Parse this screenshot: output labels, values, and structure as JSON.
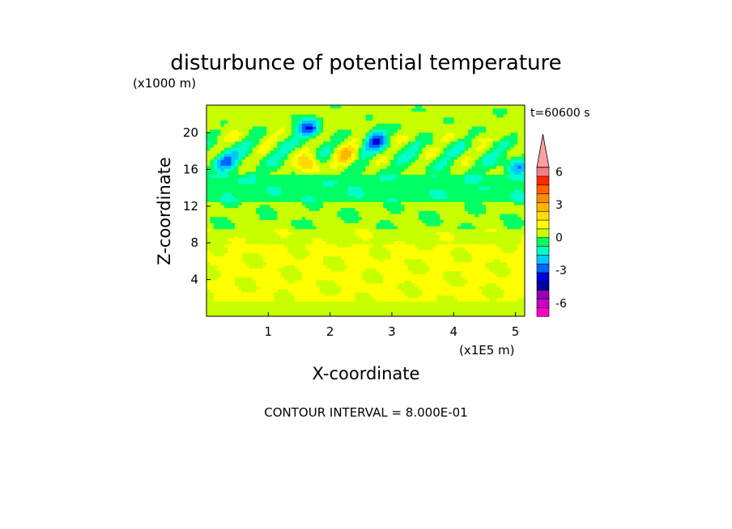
{
  "chart_data": {
    "type": "heatmap",
    "title": "disturbunce of potential temperature",
    "xlabel": "X-coordinate",
    "ylabel": "Z-coordinate",
    "x_unit": "(x1E5 m)",
    "y_unit": "(x1000 m)",
    "time_label": "t=60600 s",
    "contour_interval": "CONTOUR INTERVAL = 8.000E-01",
    "xlim": [
      0,
      5.15
    ],
    "ylim": [
      0,
      23
    ],
    "x_ticks": [
      1,
      2,
      3,
      4,
      5
    ],
    "y_ticks": [
      4,
      8,
      12,
      16,
      20
    ],
    "x_tick_labels": [
      "1",
      "2",
      "3",
      "4",
      "5"
    ],
    "y_tick_labels": [
      "4",
      "8",
      "12",
      "16",
      "20"
    ],
    "colorbar": {
      "levels": [
        -7.2,
        -6.4,
        -5.6,
        -4.8,
        -4.0,
        -3.2,
        -2.4,
        -1.6,
        -0.8,
        0,
        0.8,
        1.6,
        2.4,
        3.2,
        4.0,
        4.8,
        5.6,
        6.4,
        7.2
      ],
      "colors": [
        "#ff00c8",
        "#c800c8",
        "#9600b4",
        "#0000a0",
        "#0000dc",
        "#0064ff",
        "#00c8ff",
        "#00ffc8",
        "#00ff64",
        "#c8ff00",
        "#ffff00",
        "#ffdc00",
        "#ffb400",
        "#ff8c00",
        "#ff6400",
        "#ff2800",
        "#f08080",
        "#ffa0a0"
      ],
      "tick_values": [
        -6,
        -3,
        0,
        3,
        6
      ],
      "tick_labels": [
        "-6",
        "-3",
        "0",
        "3",
        "6"
      ]
    },
    "features": [
      {
        "x": [
          0,
          5.15
        ],
        "z": [
          0,
          1.5
        ],
        "value": 0.4
      },
      {
        "x": [
          0,
          5.15
        ],
        "z": [
          1.5,
          8
        ],
        "value": 0.9
      },
      {
        "x": [
          0,
          5.15
        ],
        "z": [
          8,
          9.5
        ],
        "value": 0.6
      },
      {
        "x": [
          0,
          5.15
        ],
        "z": [
          9.5,
          12.5
        ],
        "value": 0.1
      },
      {
        "x": [
          0,
          5.15
        ],
        "z": [
          12.5,
          15.5
        ],
        "value": -0.6
      },
      {
        "x": [
          0,
          5.15
        ],
        "z": [
          15.5,
          19
        ],
        "value": -0.1
      },
      {
        "x": [
          0,
          5.15
        ],
        "z": [
          19,
          23
        ],
        "value": 0.3
      },
      {
        "x": 1.65,
        "z": 16.5,
        "value": 2.6
      },
      {
        "x": 2.25,
        "z": 17.5,
        "value": 2.2
      },
      {
        "x": 1.65,
        "z": 20.5,
        "value": -3.5
      },
      {
        "x": 2.75,
        "z": 19.3,
        "value": -3.0
      },
      {
        "x": 0.3,
        "z": 17.0,
        "value": -2.6
      },
      {
        "x": 5.0,
        "z": 16.5,
        "value": -2.0
      }
    ]
  }
}
